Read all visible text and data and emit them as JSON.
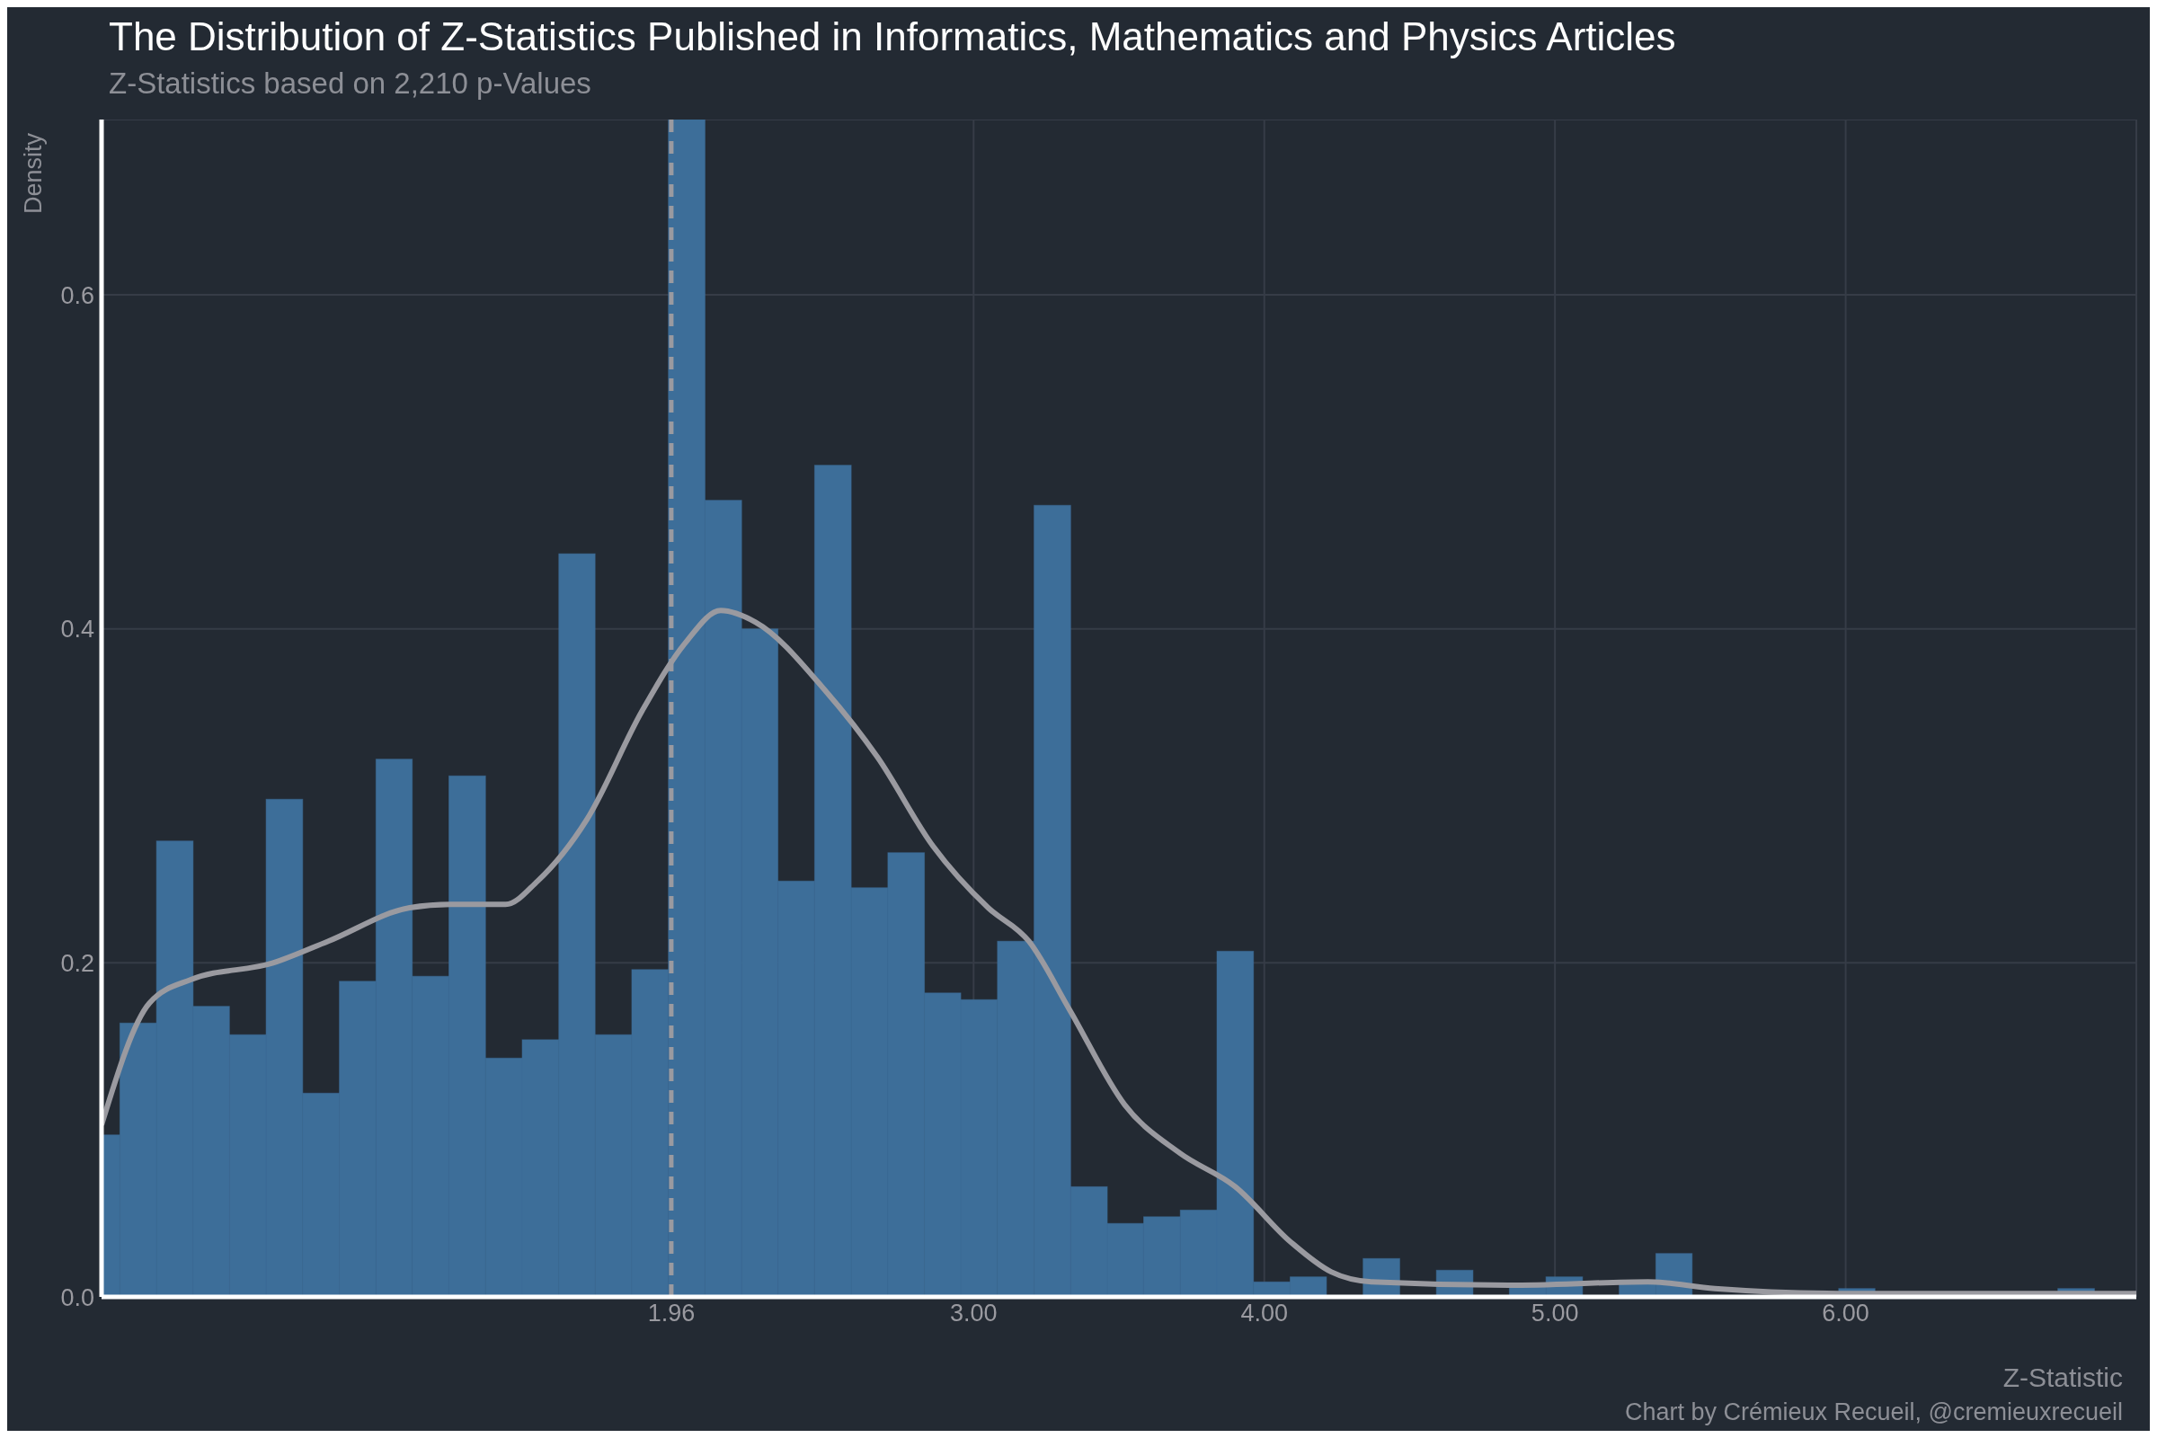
{
  "chart_data": {
    "type": "histogram",
    "title": "The Distribution of Z-Statistics Published in Informatics, Mathematics and Physics Articles",
    "subtitle": "Z-Statistics based on 2,210 p-Values",
    "xlabel": "Z-Statistic",
    "ylabel": "Density",
    "annotations": [
      "Chart by Crémieux Recueil, @cremieuxrecueil"
    ],
    "bins": [
      0,
      0.063,
      0.189,
      0.315,
      0.44,
      0.566,
      0.692,
      0.818,
      0.944,
      1.069,
      1.195,
      1.321,
      1.447,
      1.573,
      1.698,
      1.824,
      1.95,
      2.076,
      2.202,
      2.327,
      2.453,
      2.579,
      2.705,
      2.831,
      2.956,
      3.082,
      3.208,
      3.334,
      3.46,
      3.585,
      3.711,
      3.837,
      3.963,
      4.089,
      4.214,
      4.34,
      4.466,
      4.592,
      4.718,
      4.843,
      4.969,
      5.095,
      5.221,
      5.347,
      5.472,
      5.976,
      6.101,
      6.73,
      6.856
    ],
    "values": [
      0.097,
      0.164,
      0.273,
      0.174,
      0.157,
      0.298,
      0.122,
      0.189,
      0.322,
      0.192,
      0.312,
      0.143,
      0.154,
      0.445,
      0.157,
      0.196,
      0.705,
      0.477,
      0.4,
      0.249,
      0.498,
      0.245,
      0.266,
      0.182,
      0.178,
      0.213,
      0.474,
      0.066,
      0.044,
      0.048,
      0.052,
      0.207,
      0.009,
      0.012,
      null,
      0.023,
      null,
      0.016,
      null,
      0.008,
      0.012,
      null,
      0.008,
      0.026,
      null,
      0.005,
      0,
      0.005
    ],
    "color": "#3d6e99",
    "series": [
      {
        "type": "line",
        "color": "#9a9aa0",
        "x": [
          0,
          0.165,
          0.307,
          0.59,
          0.78,
          1.06,
          1.2,
          1.39,
          1.5,
          1.67,
          1.86,
          2.01,
          2.13,
          2.25,
          2.49,
          2.67,
          2.86,
          3.05,
          3.19,
          3.33,
          3.52,
          3.71,
          3.9,
          4.09,
          4.23,
          4.37,
          4.84,
          5.32,
          5.55,
          6.02,
          6.5,
          7.0
        ],
        "values": [
          0.103,
          0.176,
          0.19,
          0.2,
          0.213,
          0.233,
          0.235,
          0.235,
          0.249,
          0.286,
          0.351,
          0.392,
          0.411,
          0.404,
          0.363,
          0.323,
          0.27,
          0.233,
          0.213,
          0.172,
          0.115,
          0.086,
          0.066,
          0.033,
          0.015,
          0.009,
          0.007,
          0.009,
          0.005,
          0.002,
          0.002,
          0.002
        ]
      }
    ],
    "ref_lines": [
      {
        "axis": "x",
        "value": 1.96,
        "color": "#9a9aa0",
        "line_style": "dashed"
      }
    ],
    "xlim": [
      0,
      7
    ],
    "ylim": [
      0,
      0.705
    ],
    "xticks": [
      {
        "value": 1.96,
        "label": "1.96"
      },
      {
        "value": 3,
        "label": "3.00"
      },
      {
        "value": 4,
        "label": "4.00"
      },
      {
        "value": 5,
        "label": "5.00"
      },
      {
        "value": 6,
        "label": "6.00"
      }
    ],
    "yticks": [
      {
        "value": 0,
        "label": "0.0"
      },
      {
        "value": 0.2,
        "label": "0.2"
      },
      {
        "value": 0.4,
        "label": "0.4"
      },
      {
        "value": 0.6,
        "label": "0.6"
      }
    ],
    "grid": true,
    "legend": false
  }
}
